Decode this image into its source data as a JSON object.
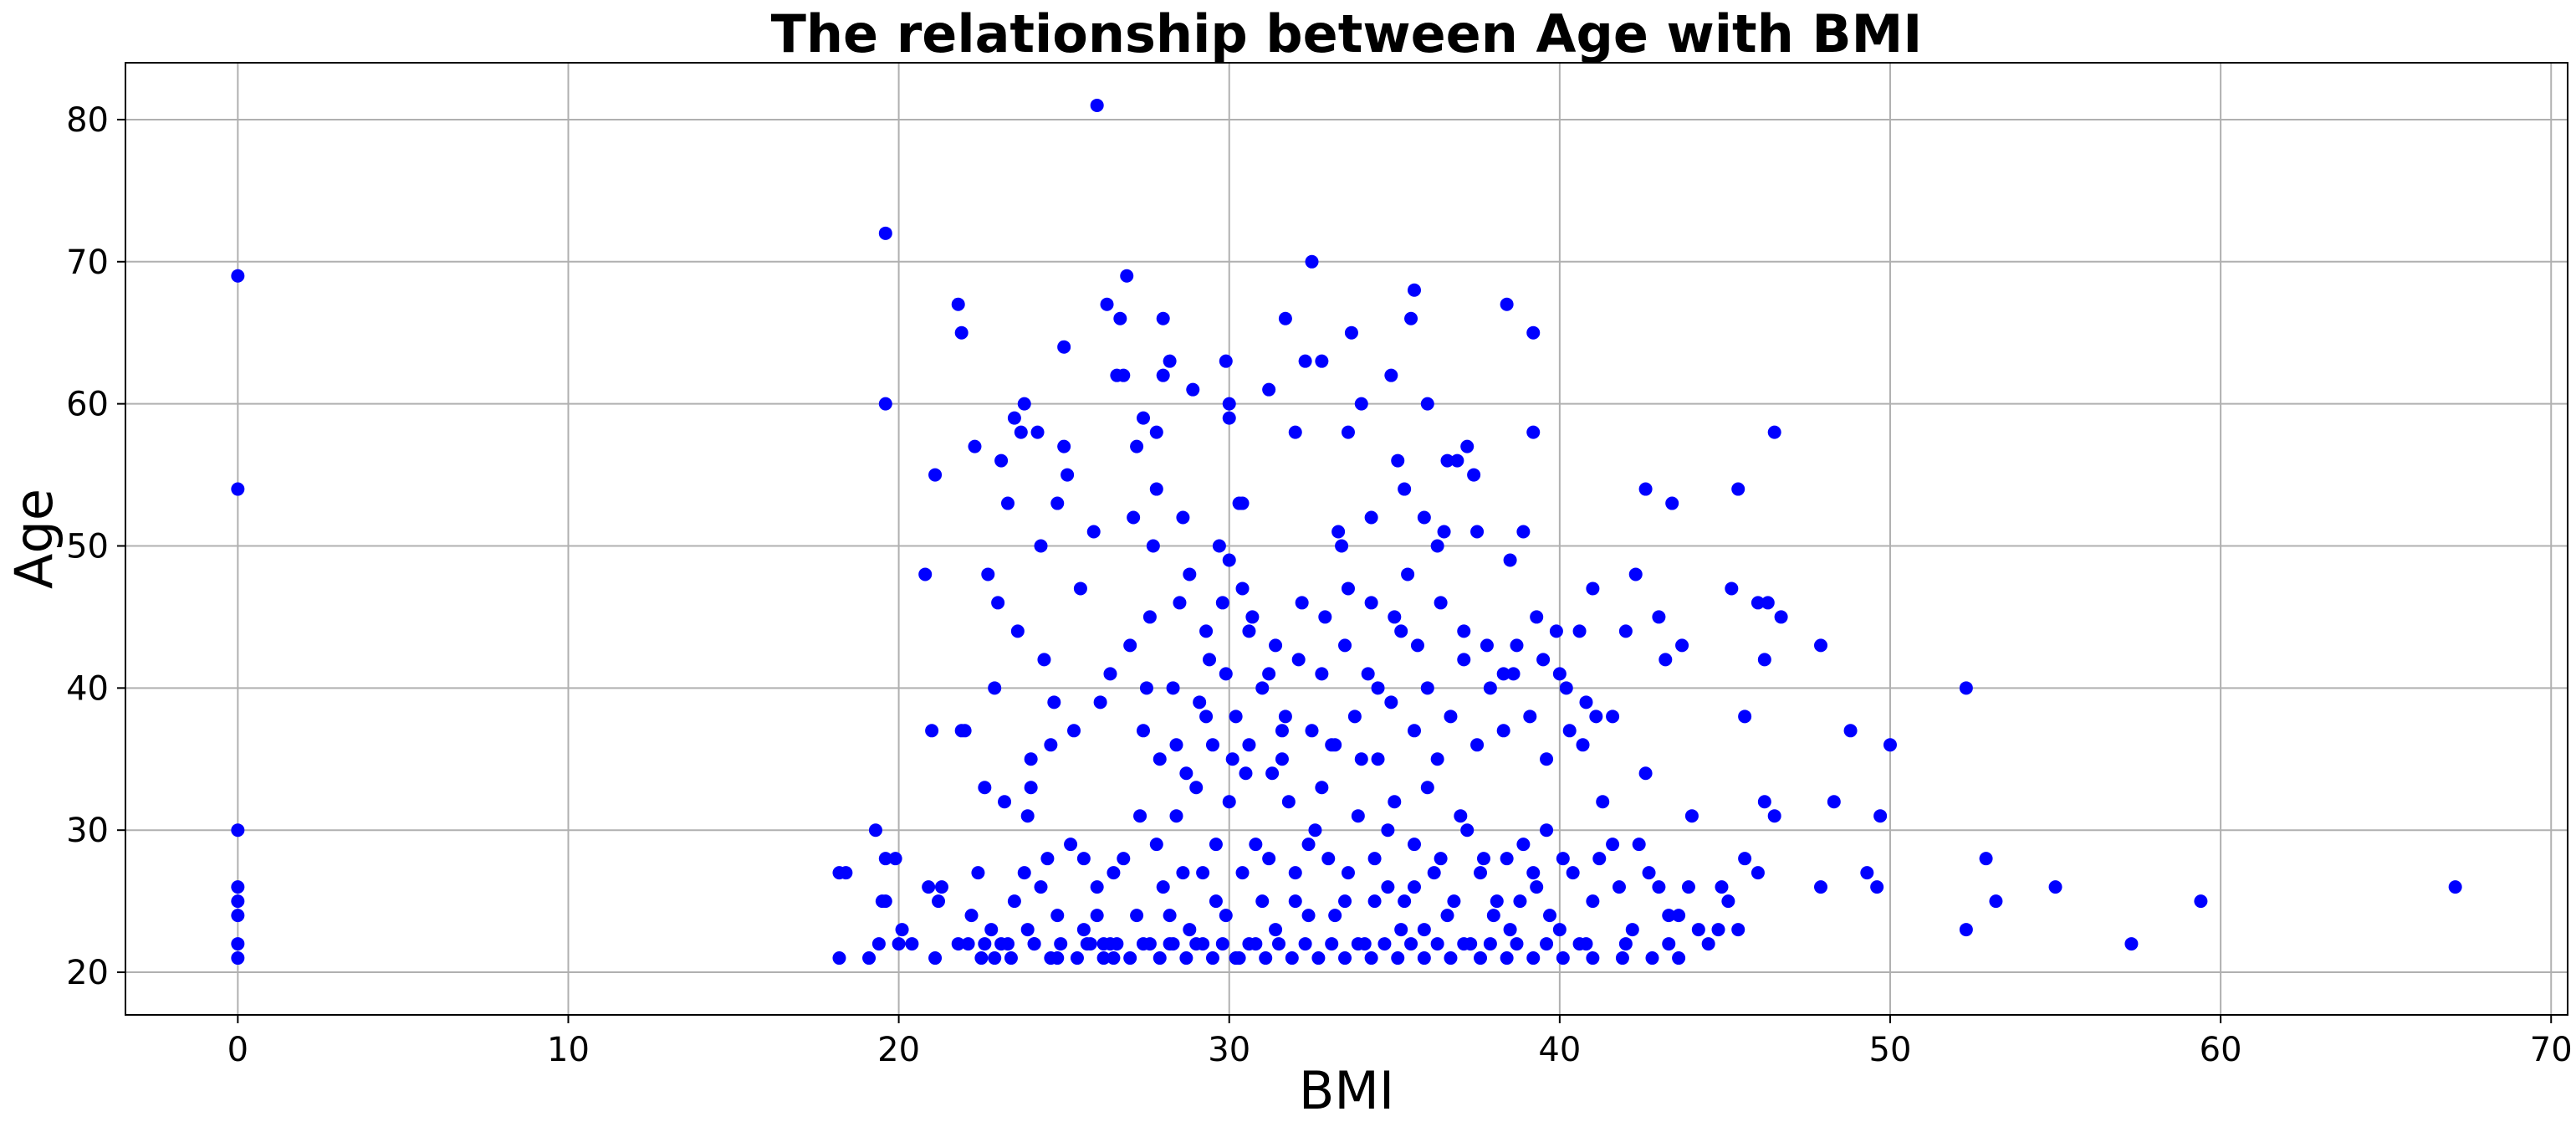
{
  "chart_data": {
    "type": "scatter",
    "title": "The relationship between Age with BMI",
    "xlabel": "BMI",
    "ylabel": "Age",
    "xlim": [
      -3.4,
      70.5
    ],
    "ylim": [
      17.0,
      84.0
    ],
    "xticks": [
      0,
      10,
      20,
      30,
      40,
      50,
      60,
      70
    ],
    "yticks": [
      20,
      30,
      40,
      50,
      60,
      70,
      80
    ],
    "grid": true,
    "marker_color": "#0000ff",
    "points": [
      [
        0,
        21
      ],
      [
        0,
        22
      ],
      [
        0,
        24
      ],
      [
        0,
        25
      ],
      [
        0,
        26
      ],
      [
        0,
        30
      ],
      [
        0,
        54
      ],
      [
        0,
        69
      ],
      [
        18.2,
        21
      ],
      [
        18.2,
        27
      ],
      [
        18.4,
        27
      ],
      [
        19.1,
        21
      ],
      [
        19.3,
        30
      ],
      [
        19.4,
        22
      ],
      [
        19.5,
        25
      ],
      [
        19.6,
        25
      ],
      [
        19.6,
        28
      ],
      [
        19.6,
        72
      ],
      [
        19.6,
        60
      ],
      [
        19.9,
        28
      ],
      [
        20.0,
        22
      ],
      [
        20.1,
        23
      ],
      [
        20.4,
        22
      ],
      [
        20.8,
        48
      ],
      [
        20.9,
        26
      ],
      [
        21.0,
        37
      ],
      [
        21.1,
        21
      ],
      [
        21.1,
        55
      ],
      [
        21.2,
        25
      ],
      [
        21.3,
        26
      ],
      [
        21.8,
        22
      ],
      [
        21.8,
        67
      ],
      [
        21.9,
        65
      ],
      [
        21.9,
        37
      ],
      [
        22.0,
        37
      ],
      [
        22.1,
        22
      ],
      [
        22.3,
        57
      ],
      [
        22.4,
        27
      ],
      [
        22.5,
        21
      ],
      [
        22.6,
        33
      ],
      [
        22.6,
        22
      ],
      [
        22.7,
        48
      ],
      [
        22.9,
        21
      ],
      [
        22.9,
        40
      ],
      [
        23.0,
        46
      ],
      [
        23.1,
        22
      ],
      [
        23.1,
        56
      ],
      [
        23.2,
        32
      ],
      [
        23.3,
        53
      ],
      [
        23.4,
        21
      ],
      [
        23.5,
        59
      ],
      [
        23.6,
        44
      ],
      [
        23.7,
        58
      ],
      [
        23.8,
        60
      ],
      [
        23.9,
        31
      ],
      [
        24.0,
        33
      ],
      [
        24.0,
        35
      ],
      [
        24.1,
        22
      ],
      [
        24.2,
        58
      ],
      [
        24.3,
        50
      ],
      [
        24.4,
        42
      ],
      [
        24.5,
        28
      ],
      [
        24.6,
        36
      ],
      [
        24.7,
        39
      ],
      [
        24.8,
        53
      ],
      [
        24.8,
        21
      ],
      [
        25.0,
        57
      ],
      [
        25.0,
        64
      ],
      [
        25.1,
        55
      ],
      [
        25.3,
        37
      ],
      [
        25.5,
        47
      ],
      [
        25.6,
        28
      ],
      [
        25.8,
        22
      ],
      [
        25.9,
        51
      ],
      [
        26.0,
        81
      ],
      [
        26.1,
        39
      ],
      [
        26.2,
        22
      ],
      [
        26.3,
        67
      ],
      [
        26.4,
        41
      ],
      [
        26.5,
        21
      ],
      [
        26.6,
        62
      ],
      [
        26.7,
        66
      ],
      [
        26.8,
        62
      ],
      [
        26.9,
        69
      ],
      [
        27.0,
        43
      ],
      [
        27.1,
        52
      ],
      [
        27.2,
        57
      ],
      [
        27.4,
        59
      ],
      [
        27.5,
        40
      ],
      [
        27.6,
        45
      ],
      [
        27.7,
        50
      ],
      [
        27.8,
        54
      ],
      [
        27.8,
        58
      ],
      [
        28.0,
        66
      ],
      [
        28.0,
        62
      ],
      [
        28.2,
        63
      ],
      [
        28.3,
        22
      ],
      [
        28.4,
        36
      ],
      [
        28.6,
        52
      ],
      [
        28.8,
        48
      ],
      [
        28.9,
        61
      ],
      [
        29.3,
        38
      ],
      [
        29.4,
        42
      ],
      [
        29.7,
        50
      ],
      [
        29.8,
        46
      ],
      [
        29.9,
        63
      ],
      [
        30.0,
        59
      ],
      [
        30.0,
        60
      ],
      [
        30.1,
        35
      ],
      [
        30.3,
        53
      ],
      [
        30.4,
        53
      ],
      [
        30.4,
        47
      ],
      [
        30.6,
        44
      ],
      [
        31.2,
        61
      ],
      [
        31.2,
        41
      ],
      [
        31.6,
        37
      ],
      [
        31.7,
        66
      ],
      [
        32.0,
        58
      ],
      [
        32.3,
        63
      ],
      [
        32.5,
        70
      ],
      [
        32.8,
        63
      ],
      [
        33.3,
        51
      ],
      [
        33.4,
        50
      ],
      [
        33.6,
        58
      ],
      [
        33.7,
        65
      ],
      [
        34.0,
        60
      ],
      [
        34.3,
        52
      ],
      [
        34.5,
        40
      ],
      [
        34.9,
        62
      ],
      [
        35.1,
        56
      ],
      [
        35.3,
        54
      ],
      [
        35.4,
        48
      ],
      [
        35.5,
        66
      ],
      [
        35.6,
        68
      ],
      [
        35.9,
        52
      ],
      [
        36.0,
        60
      ],
      [
        36.3,
        50
      ],
      [
        36.5,
        51
      ],
      [
        36.6,
        56
      ],
      [
        36.9,
        56
      ],
      [
        37.2,
        57
      ],
      [
        37.4,
        55
      ],
      [
        37.5,
        51
      ],
      [
        38.3,
        41
      ],
      [
        38.4,
        67
      ],
      [
        38.6,
        41
      ],
      [
        38.9,
        51
      ],
      [
        39.2,
        58
      ],
      [
        39.2,
        65
      ],
      [
        39.5,
        42
      ],
      [
        39.9,
        44
      ],
      [
        40.0,
        41
      ],
      [
        40.3,
        37
      ],
      [
        40.6,
        44
      ],
      [
        40.8,
        39
      ],
      [
        41.0,
        47
      ],
      [
        41.1,
        38
      ],
      [
        41.6,
        38
      ],
      [
        42.3,
        48
      ],
      [
        42.6,
        54
      ],
      [
        43.0,
        45
      ],
      [
        43.4,
        53
      ],
      [
        43.7,
        43
      ],
      [
        45.2,
        47
      ],
      [
        45.4,
        54
      ],
      [
        45.6,
        38
      ],
      [
        46.0,
        46
      ],
      [
        46.2,
        42
      ],
      [
        46.3,
        46
      ],
      [
        46.5,
        58
      ],
      [
        46.7,
        45
      ],
      [
        47.9,
        43
      ],
      [
        47.9,
        26
      ],
      [
        48.3,
        32
      ],
      [
        48.8,
        37
      ],
      [
        49.3,
        27
      ],
      [
        49.6,
        26
      ],
      [
        49.7,
        31
      ],
      [
        50.0,
        36
      ],
      [
        52.3,
        40
      ],
      [
        52.3,
        23
      ],
      [
        52.9,
        28
      ],
      [
        53.2,
        25
      ],
      [
        55.0,
        26
      ],
      [
        57.3,
        22
      ],
      [
        59.4,
        25
      ],
      [
        67.1,
        26
      ],
      [
        26.0,
        24
      ],
      [
        26.5,
        27
      ],
      [
        27.3,
        31
      ],
      [
        27.8,
        29
      ],
      [
        28.2,
        24
      ],
      [
        28.6,
        27
      ],
      [
        29.0,
        33
      ],
      [
        29.2,
        22
      ],
      [
        29.6,
        29
      ],
      [
        29.9,
        24
      ],
      [
        30.2,
        21
      ],
      [
        30.5,
        34
      ],
      [
        30.8,
        29
      ],
      [
        31.0,
        25
      ],
      [
        31.4,
        23
      ],
      [
        31.8,
        32
      ],
      [
        32.0,
        27
      ],
      [
        32.4,
        24
      ],
      [
        32.6,
        30
      ],
      [
        33.0,
        28
      ],
      [
        33.2,
        36
      ],
      [
        33.5,
        25
      ],
      [
        33.9,
        31
      ],
      [
        34.1,
        22
      ],
      [
        34.4,
        28
      ],
      [
        34.8,
        26
      ],
      [
        35.0,
        32
      ],
      [
        35.3,
        25
      ],
      [
        35.6,
        29
      ],
      [
        35.9,
        23
      ],
      [
        36.2,
        27
      ],
      [
        36.6,
        24
      ],
      [
        37.0,
        31
      ],
      [
        37.3,
        22
      ],
      [
        37.7,
        28
      ],
      [
        38.1,
        25
      ],
      [
        38.5,
        23
      ],
      [
        38.9,
        29
      ],
      [
        39.3,
        26
      ],
      [
        39.7,
        24
      ],
      [
        40.1,
        28
      ],
      [
        40.6,
        22
      ],
      [
        41.0,
        25
      ],
      [
        41.6,
        29
      ],
      [
        42.2,
        23
      ],
      [
        42.7,
        27
      ],
      [
        43.3,
        24
      ],
      [
        43.9,
        26
      ],
      [
        44.5,
        22
      ],
      [
        45.1,
        25
      ],
      [
        23.5,
        25
      ],
      [
        23.9,
        23
      ],
      [
        24.3,
        26
      ],
      [
        24.8,
        24
      ],
      [
        25.2,
        29
      ],
      [
        25.6,
        23
      ],
      [
        26.0,
        26
      ],
      [
        26.4,
        22
      ],
      [
        26.8,
        28
      ],
      [
        27.2,
        24
      ],
      [
        27.6,
        22
      ],
      [
        28.0,
        26
      ],
      [
        28.4,
        31
      ],
      [
        28.8,
        23
      ],
      [
        29.2,
        27
      ],
      [
        29.6,
        25
      ],
      [
        30.0,
        32
      ],
      [
        30.4,
        27
      ],
      [
        30.8,
        22
      ],
      [
        31.2,
        28
      ],
      [
        31.6,
        35
      ],
      [
        32.0,
        25
      ],
      [
        32.4,
        29
      ],
      [
        32.8,
        33
      ],
      [
        33.2,
        24
      ],
      [
        33.6,
        27
      ],
      [
        34.0,
        35
      ],
      [
        34.4,
        25
      ],
      [
        34.8,
        30
      ],
      [
        35.2,
        23
      ],
      [
        35.6,
        26
      ],
      [
        36.0,
        33
      ],
      [
        36.4,
        28
      ],
      [
        36.8,
        25
      ],
      [
        37.2,
        30
      ],
      [
        37.6,
        27
      ],
      [
        38.0,
        24
      ],
      [
        38.4,
        28
      ],
      [
        38.8,
        25
      ],
      [
        39.2,
        27
      ],
      [
        39.6,
        30
      ],
      [
        40.0,
        23
      ],
      [
        40.4,
        27
      ],
      [
        40.8,
        22
      ],
      [
        41.2,
        28
      ],
      [
        41.8,
        26
      ],
      [
        42.4,
        29
      ],
      [
        43.0,
        26
      ],
      [
        43.6,
        24
      ],
      [
        44.2,
        23
      ],
      [
        27.4,
        37
      ],
      [
        27.9,
        35
      ],
      [
        28.3,
        40
      ],
      [
        28.7,
        34
      ],
      [
        29.1,
        39
      ],
      [
        29.5,
        36
      ],
      [
        29.9,
        41
      ],
      [
        30.2,
        38
      ],
      [
        30.6,
        36
      ],
      [
        31.0,
        40
      ],
      [
        31.3,
        34
      ],
      [
        31.7,
        38
      ],
      [
        32.1,
        42
      ],
      [
        32.5,
        37
      ],
      [
        32.8,
        41
      ],
      [
        33.1,
        36
      ],
      [
        33.5,
        43
      ],
      [
        33.8,
        38
      ],
      [
        34.2,
        41
      ],
      [
        34.5,
        35
      ],
      [
        34.9,
        39
      ],
      [
        35.2,
        44
      ],
      [
        35.6,
        37
      ],
      [
        36.0,
        40
      ],
      [
        36.3,
        35
      ],
      [
        36.7,
        38
      ],
      [
        37.1,
        42
      ],
      [
        37.5,
        36
      ],
      [
        37.9,
        40
      ],
      [
        38.3,
        37
      ],
      [
        38.7,
        43
      ],
      [
        39.1,
        38
      ],
      [
        39.6,
        35
      ],
      [
        40.2,
        40
      ],
      [
        40.7,
        36
      ],
      [
        41.3,
        32
      ],
      [
        42.0,
        44
      ],
      [
        42.6,
        34
      ],
      [
        43.2,
        42
      ],
      [
        44.0,
        31
      ],
      [
        28.5,
        46
      ],
      [
        29.3,
        44
      ],
      [
        30.0,
        49
      ],
      [
        30.7,
        45
      ],
      [
        31.4,
        43
      ],
      [
        32.2,
        46
      ],
      [
        32.9,
        45
      ],
      [
        33.6,
        47
      ],
      [
        34.3,
        46
      ],
      [
        35.0,
        45
      ],
      [
        35.7,
        43
      ],
      [
        36.4,
        46
      ],
      [
        37.1,
        44
      ],
      [
        37.8,
        43
      ],
      [
        38.5,
        49
      ],
      [
        39.3,
        45
      ],
      [
        22.2,
        24
      ],
      [
        22.8,
        23
      ],
      [
        23.3,
        22
      ],
      [
        23.8,
        27
      ],
      [
        24.6,
        21
      ],
      [
        25.4,
        21
      ],
      [
        26.2,
        21
      ],
      [
        27.0,
        21
      ],
      [
        27.9,
        21
      ],
      [
        28.7,
        21
      ],
      [
        29.5,
        21
      ],
      [
        30.3,
        21
      ],
      [
        31.1,
        21
      ],
      [
        31.9,
        21
      ],
      [
        32.7,
        21
      ],
      [
        33.5,
        21
      ],
      [
        34.3,
        21
      ],
      [
        35.1,
        21
      ],
      [
        35.9,
        21
      ],
      [
        36.7,
        21
      ],
      [
        37.6,
        21
      ],
      [
        38.4,
        21
      ],
      [
        39.2,
        21
      ],
      [
        40.1,
        21
      ],
      [
        41.0,
        21
      ],
      [
        41.9,
        21
      ],
      [
        42.8,
        21
      ],
      [
        43.6,
        21
      ],
      [
        24.1,
        22
      ],
      [
        24.9,
        22
      ],
      [
        25.7,
        22
      ],
      [
        26.6,
        22
      ],
      [
        27.4,
        22
      ],
      [
        28.2,
        22
      ],
      [
        29.0,
        22
      ],
      [
        29.8,
        22
      ],
      [
        30.6,
        22
      ],
      [
        31.5,
        22
      ],
      [
        32.3,
        22
      ],
      [
        33.1,
        22
      ],
      [
        33.9,
        22
      ],
      [
        34.7,
        22
      ],
      [
        35.5,
        22
      ],
      [
        36.3,
        22
      ],
      [
        37.1,
        22
      ],
      [
        37.9,
        22
      ],
      [
        38.7,
        22
      ],
      [
        39.6,
        22
      ],
      [
        42.0,
        22
      ],
      [
        43.3,
        22
      ],
      [
        44.8,
        23
      ],
      [
        45.4,
        23
      ],
      [
        46.0,
        27
      ],
      [
        46.5,
        31
      ],
      [
        45.6,
        28
      ],
      [
        46.2,
        32
      ],
      [
        44.9,
        26
      ]
    ]
  }
}
